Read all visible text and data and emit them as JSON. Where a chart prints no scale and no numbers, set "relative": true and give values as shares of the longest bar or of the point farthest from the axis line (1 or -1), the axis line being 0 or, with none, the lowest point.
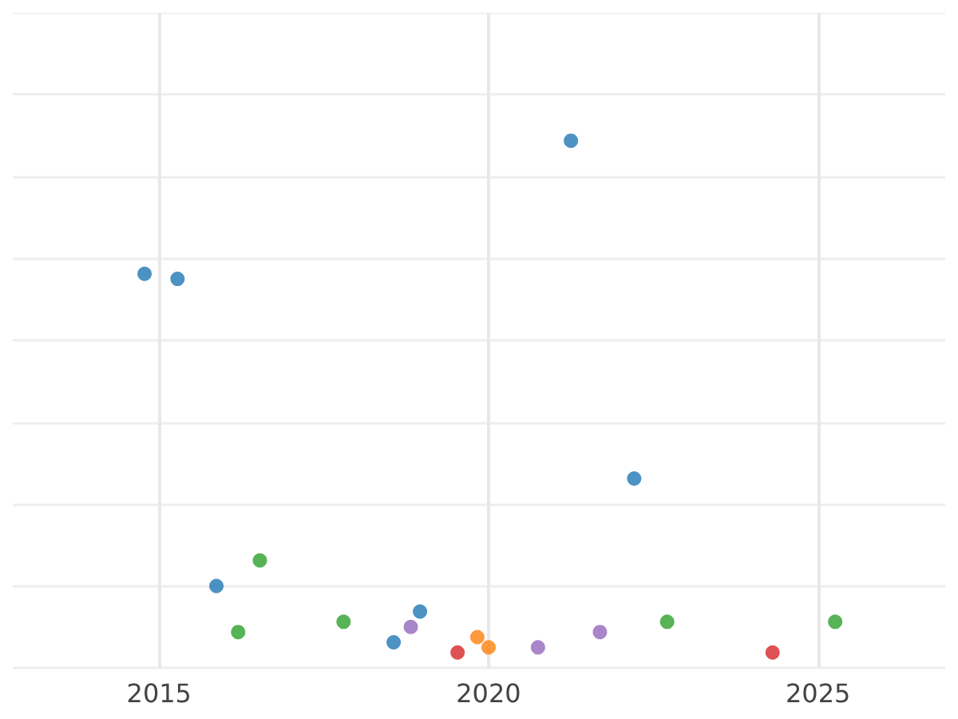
{
  "chart_data": {
    "type": "scatter",
    "relative": true,
    "xlim": [
      2012.78,
      2026.93
    ],
    "xticks": [
      2015,
      2020,
      2025
    ],
    "grid": true,
    "marker": "circle",
    "tick_labels": "x",
    "series": [
      {
        "color": "#1f77b4",
        "x": [
          2014.78,
          2015.28,
          2015.87,
          2018.56,
          2018.96,
          2021.25,
          2022.21
        ],
        "values": [
          0.74,
          0.73,
          0.13,
          0.02,
          0.08,
          1,
          0.34
        ]
      },
      {
        "color": "#2ca02c",
        "x": [
          2016.2,
          2016.53,
          2017.8,
          2022.71,
          2025.26
        ],
        "values": [
          0.04,
          0.18,
          0.06,
          0.06,
          0.06
        ]
      },
      {
        "color": "#9467bd",
        "x": [
          2018.82,
          2020.75,
          2021.69
        ],
        "values": [
          0.05,
          0.01,
          0.04
        ]
      },
      {
        "color": "#ff7f0e",
        "x": [
          2019.83,
          2020.0
        ],
        "values": [
          0.03,
          0.01
        ]
      },
      {
        "color": "#d62728",
        "x": [
          2019.53,
          2024.31
        ],
        "values": [
          0,
          0
        ]
      }
    ]
  }
}
